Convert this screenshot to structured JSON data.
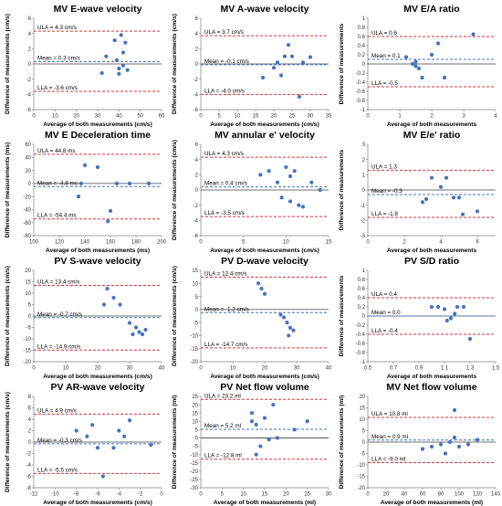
{
  "colors": {
    "point": "#4472c4",
    "limit": "#e03030",
    "mean": "#4472c4",
    "zero": "#404040"
  },
  "chart_data": [
    {
      "type": "scatter",
      "title": "MV E-wave velocity",
      "xlabel": "Average of both measurements (cm/s)",
      "ylabel": "Difference of measurements (cm/s)",
      "xlim": [
        0,
        60
      ],
      "ylim": [
        -6,
        6
      ],
      "xticks": [
        0,
        10,
        20,
        30,
        40,
        50,
        60
      ],
      "yticks": [
        -6,
        -4,
        -2,
        0,
        2,
        4,
        6
      ],
      "ula": 4.3,
      "mean": 0.3,
      "lla": -3.6,
      "ula_label": "ULA = 4.3 cm/s",
      "mean_label": "Mean = 0.3 cm/s",
      "lla_label": "LLA = -3.6 cm/s",
      "x": [
        32,
        34,
        38,
        39,
        40,
        40,
        41,
        42,
        42,
        43,
        44
      ],
      "y": [
        -1.2,
        1.0,
        3.1,
        0.5,
        -0.6,
        -1.3,
        3.8,
        1.5,
        -0.2,
        2.8,
        -0.8
      ]
    },
    {
      "type": "scatter",
      "title": "MV A-wave velocity",
      "xlabel": "Average of both measurements (cm/s)",
      "ylabel": "Difference of measurements (cm/s)",
      "xlim": [
        0,
        35
      ],
      "ylim": [
        -6,
        6
      ],
      "xticks": [
        0,
        5,
        10,
        15,
        20,
        25,
        30,
        35
      ],
      "yticks": [
        -6,
        -4,
        -2,
        0,
        2,
        4,
        6
      ],
      "ula": 3.7,
      "mean": -0.1,
      "lla": -4.0,
      "ula_label": "ULA = 3.7 cm/s",
      "mean_label": "Mean = -0.1 cm/s",
      "lla_label": "LLA = -4.0 cm/s",
      "x": [
        17,
        20,
        21,
        22,
        23,
        24,
        25,
        27,
        28,
        30
      ],
      "y": [
        -1.8,
        -0.5,
        0.2,
        -1.5,
        1.0,
        2.5,
        1.0,
        -4.3,
        0.2,
        0.9
      ]
    },
    {
      "type": "scatter",
      "title": "MV E/A ratio",
      "xlabel": "Average of both measurements",
      "ylabel": "Difference of measurements",
      "xlim": [
        0,
        4
      ],
      "ylim": [
        -1,
        1
      ],
      "xticks": [
        0,
        1,
        2,
        3,
        4
      ],
      "yticks": [
        -1,
        -0.8,
        -0.6,
        -0.4,
        -0.2,
        0,
        0.2,
        0.4,
        0.6,
        0.8,
        1
      ],
      "ula": 0.6,
      "mean": 0.1,
      "lla": -0.5,
      "ula_label": "ULA = 0.6",
      "mean_label": "Mean = 0.1",
      "lla_label": "LLA = -0.5",
      "x": [
        1.2,
        1.4,
        1.5,
        1.5,
        1.6,
        1.7,
        2.0,
        2.2,
        2.4,
        3.3
      ],
      "y": [
        0.15,
        0.0,
        -0.05,
        0.05,
        -0.1,
        -0.3,
        0.2,
        0.45,
        -0.3,
        0.65
      ]
    },
    {
      "type": "scatter",
      "title": "MV E Deceleration time",
      "xlabel": "Average of both measurements (ms)",
      "ylabel": "Difference of measurements (ms)",
      "xlim": [
        100,
        200
      ],
      "ylim": [
        -80,
        60
      ],
      "xticks": [
        100,
        120,
        140,
        160,
        180,
        200
      ],
      "yticks": [
        -80,
        -60,
        -40,
        -20,
        0,
        20,
        40,
        60
      ],
      "ula": 44.8,
      "mean": -4.8,
      "lla": -54.4,
      "ula_label": "ULA = 44.8 ms",
      "mean_label": "Mean = -4.8 ms",
      "lla_label": "LLA = -54.4 ms",
      "x": [
        135,
        137,
        140,
        150,
        158,
        160,
        165,
        175,
        190
      ],
      "y": [
        -20,
        0,
        28,
        25,
        -58,
        -42,
        0,
        0,
        0
      ]
    },
    {
      "type": "scatter",
      "title": "MV annular e' velocity",
      "xlabel": "Average of both measurements (cm/s)",
      "ylabel": "Difference of measurements (cm/s)",
      "xlim": [
        0,
        15
      ],
      "ylim": [
        -6,
        6
      ],
      "xticks": [
        0,
        5,
        10,
        15
      ],
      "yticks": [
        -6,
        -4,
        -2,
        0,
        2,
        4,
        6
      ],
      "ula": 4.3,
      "mean": 0.4,
      "lla": -3.5,
      "ula_label": "ULA = 4.3 cm/s",
      "mean_label": "Mean = 0.4 cm/s",
      "lla_label": "LLA = -3.5 cm/s",
      "x": [
        7,
        8,
        9,
        9.5,
        10,
        10.5,
        10.5,
        11,
        11.5,
        12,
        13,
        14
      ],
      "y": [
        2,
        2.5,
        1,
        -1,
        3,
        -1.5,
        1.8,
        2.5,
        -2,
        -2.2,
        1,
        0
      ]
    },
    {
      "type": "scatter",
      "title": "MV E/e' ratio",
      "xlabel": "Average of both measurements",
      "ylabel": "Difference of measurements",
      "xlim": [
        0,
        7
      ],
      "ylim": [
        -3,
        3
      ],
      "xticks": [
        0,
        2,
        4,
        6
      ],
      "yticks": [
        -3,
        -2,
        -1,
        0,
        1,
        2,
        3
      ],
      "ula": 1.3,
      "mean": -0.3,
      "lla": -1.8,
      "ula_label": "ULA = 1.3",
      "mean_label": "Mean = -0.3",
      "lla_label": "LLA = -1.8",
      "x": [
        3.0,
        3.2,
        3.5,
        4.0,
        4.3,
        4.7,
        5.0,
        5.2,
        6.0
      ],
      "y": [
        -0.8,
        -0.6,
        0.8,
        0.2,
        0.8,
        -0.5,
        -0.5,
        -1.6,
        -1.4
      ]
    },
    {
      "type": "scatter",
      "title": "PV S-wave velocity",
      "xlabel": "Average of both measurements (cm/s)",
      "ylabel": "Difference of measurements (cm/s)",
      "xlim": [
        0,
        40
      ],
      "ylim": [
        -20,
        20
      ],
      "xticks": [
        0,
        10,
        20,
        30,
        40
      ],
      "yticks": [
        -20,
        -15,
        -10,
        -5,
        0,
        5,
        10,
        15,
        20
      ],
      "ula": 13.4,
      "mean": -0.7,
      "lla": -14.9,
      "ula_label": "ULA = 13.4 cm/s",
      "mean_label": "Mean = -0.7 cm/s",
      "lla_label": "LLA = -14.9 cm/s",
      "x": [
        22,
        23,
        25,
        27,
        30,
        31,
        32,
        33,
        34,
        35
      ],
      "y": [
        5,
        12,
        8,
        5,
        -3,
        -8,
        -5,
        -7,
        -8,
        -6
      ]
    },
    {
      "type": "scatter",
      "title": "PV D-wave velocity",
      "xlabel": "Average of both measurements (cm/s)",
      "ylabel": "Difference of measurements (cm/s)",
      "xlim": [
        0,
        40
      ],
      "ylim": [
        -20,
        15
      ],
      "xticks": [
        0,
        10,
        20,
        30,
        40
      ],
      "yticks": [
        -20,
        -15,
        -10,
        -5,
        0,
        5,
        10,
        15
      ],
      "ula": 12.4,
      "mean": -1.2,
      "lla": -14.7,
      "ula_label": "ULA = 12.4 cm/s",
      "mean_label": "Mean = -1.2 cm/s",
      "lla_label": "LLA = -14.7 cm/s",
      "x": [
        18,
        19,
        20,
        25,
        26,
        27,
        27.5,
        28,
        29
      ],
      "y": [
        10,
        8,
        6,
        -2,
        -3,
        -5,
        -10,
        -7,
        -8
      ]
    },
    {
      "type": "scatter",
      "title": "PV S/D ratio",
      "xlabel": "Average of both measurements",
      "ylabel": "Difference of measurements",
      "xlim": [
        0.5,
        1.5
      ],
      "ylim": [
        -1,
        1
      ],
      "xticks": [
        0.5,
        0.7,
        0.9,
        1.1,
        1.3,
        1.5
      ],
      "yticks": [
        -1,
        -0.8,
        -0.6,
        -0.4,
        -0.2,
        0,
        0.2,
        0.4,
        0.6,
        0.8,
        1
      ],
      "ula": 0.4,
      "mean": 0.0,
      "lla": -0.4,
      "ula_label": "ULA = 0.4",
      "mean_label": "Mean = 0.0",
      "lla_label": "LLA = -0.4",
      "x": [
        1.0,
        1.05,
        1.1,
        1.12,
        1.15,
        1.18,
        1.2,
        1.25,
        1.3
      ],
      "y": [
        0.2,
        0.2,
        0.15,
        -0.1,
        -0.05,
        0.05,
        0.2,
        0.2,
        -0.5
      ]
    },
    {
      "type": "scatter",
      "title": "PV AR-wave velocity",
      "xlabel": "Average of both measurements (cm/s)",
      "ylabel": "Difference of measurements (cm/s)",
      "xlim": [
        -12,
        0
      ],
      "ylim": [
        -8,
        8
      ],
      "xticks": [
        -12,
        -10,
        -8,
        -6,
        -4,
        -2,
        0
      ],
      "yticks": [
        -8,
        -6,
        -4,
        -2,
        0,
        2,
        4,
        6,
        8
      ],
      "ula": 4.9,
      "mean": -0.3,
      "lla": -5.5,
      "ula_label": "ULA = 4.9 cm/s",
      "mean_label": "Mean = -0.3 cm/s",
      "lla_label": "LLA = -5.5 cm/s",
      "x": [
        -8,
        -7,
        -6.5,
        -6,
        -5.5,
        -4.5,
        -4,
        -3.5,
        -3,
        -1
      ],
      "y": [
        2,
        1,
        3,
        -1,
        -6,
        -1,
        2,
        1,
        3.8,
        -0.5
      ]
    },
    {
      "type": "scatter",
      "title": "PV Net flow volume",
      "xlabel": "Average of both measurements (ml)",
      "ylabel": "Difference of measurements (ml)",
      "xlim": [
        0,
        30
      ],
      "ylim": [
        -30,
        25
      ],
      "xticks": [
        0,
        5,
        10,
        15,
        20,
        25,
        30
      ],
      "yticks": [
        -30,
        -25,
        -20,
        -15,
        -10,
        -5,
        0,
        5,
        10,
        15,
        20,
        25
      ],
      "ula": 23.2,
      "mean": 5.2,
      "lla": -12.8,
      "ula_label": "ULA = 23.2 ml",
      "mean_label": "Mean = 5.2 ml",
      "lla_label": "LLA = -12.8 ml",
      "x": [
        12,
        12,
        13,
        13,
        14,
        15,
        16,
        17,
        18,
        22,
        25
      ],
      "y": [
        15,
        10,
        8,
        -10,
        -5,
        12,
        -1,
        20,
        0,
        5,
        10
      ]
    },
    {
      "type": "scatter",
      "title": "MV Net flow volume",
      "xlabel": "Average of both measurements (ml)",
      "ylabel": "Difference of measurements (ml)",
      "xlim": [
        0,
        140
      ],
      "ylim": [
        -20,
        20
      ],
      "xticks": [
        0,
        20,
        40,
        60,
        80,
        100,
        120,
        140
      ],
      "yticks": [
        -20,
        -15,
        -10,
        -5,
        0,
        5,
        10,
        15,
        20
      ],
      "ula": 10.8,
      "mean": 0.9,
      "lla": -9.0,
      "ula_label": "ULA = 10.8 ml",
      "mean_label": "Mean = 0.9 ml",
      "lla_label": "LLA = -9.0 ml",
      "x": [
        60,
        70,
        80,
        85,
        90,
        95,
        95,
        100,
        110,
        120
      ],
      "y": [
        -3,
        -2,
        -1,
        -5,
        0,
        14,
        2,
        -2,
        -1,
        1
      ]
    }
  ]
}
